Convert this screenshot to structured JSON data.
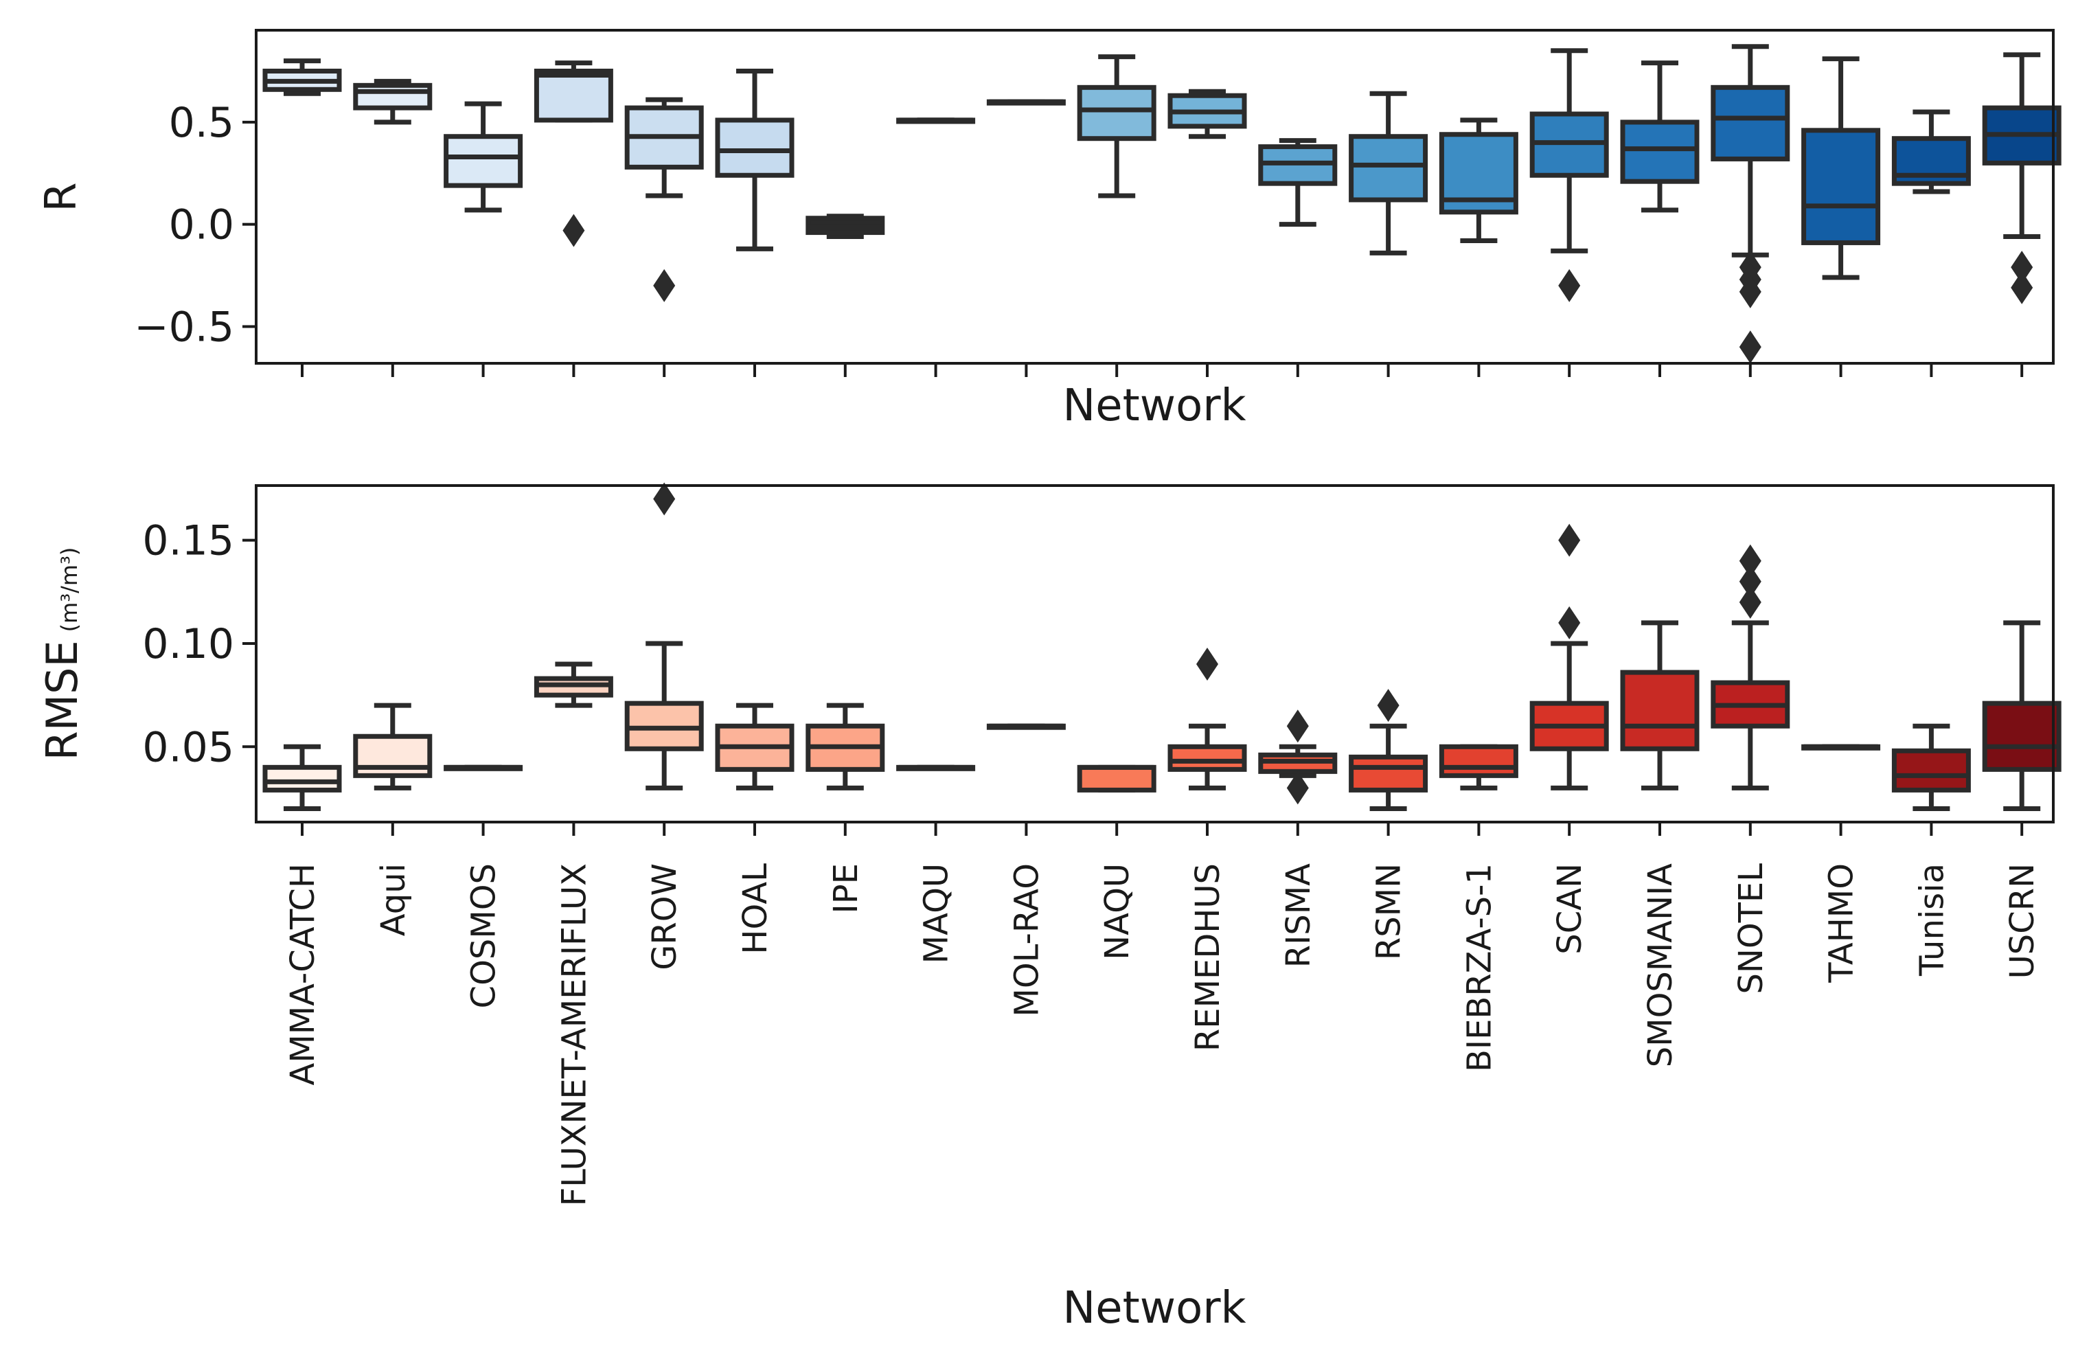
{
  "chart_data": [
    {
      "type": "box",
      "panel": "top",
      "xlabel": "Network",
      "ylabel": "R",
      "ylabel_unit": "",
      "ylim": [
        -0.68,
        0.95
      ],
      "yticks": [
        -0.5,
        0.0,
        0.5
      ],
      "ytick_labels": [
        "−0.5",
        "0.0",
        "0.5"
      ],
      "show_xtick_labels": false,
      "grid": false,
      "categories": [
        "AMMA-CATCH",
        "Aqui",
        "COSMOS",
        "FLUXNET-AMERIFLUX",
        "GROW",
        "HOAL",
        "IPE",
        "MAQU",
        "MOL-RAO",
        "NAQU",
        "REMEDHUS",
        "RISMA",
        "RSMN",
        "BIEBRZA-S-1",
        "SCAN",
        "SMOSMANIA",
        "SNOTEL",
        "TAHMO",
        "Tunisia",
        "USCRN"
      ],
      "boxes": [
        {
          "min": 0.64,
          "q1": 0.66,
          "median": 0.7,
          "q3": 0.75,
          "max": 0.8,
          "outliers": [],
          "color": "#deebf7"
        },
        {
          "min": 0.5,
          "q1": 0.57,
          "median": 0.65,
          "q3": 0.68,
          "max": 0.7,
          "outliers": [],
          "color": "#e3eef8"
        },
        {
          "min": 0.07,
          "q1": 0.19,
          "median": 0.33,
          "q3": 0.43,
          "max": 0.59,
          "outliers": [],
          "color": "#dbe9f6"
        },
        {
          "min": 0.51,
          "q1": 0.51,
          "median": 0.73,
          "q3": 0.75,
          "max": 0.79,
          "outliers": [
            -0.03
          ],
          "color": "#d0e1f2"
        },
        {
          "min": 0.14,
          "q1": 0.28,
          "median": 0.43,
          "q3": 0.57,
          "max": 0.61,
          "outliers": [
            -0.3
          ],
          "color": "#cbdef0"
        },
        {
          "min": -0.12,
          "q1": 0.24,
          "median": 0.36,
          "q3": 0.51,
          "max": 0.75,
          "outliers": [],
          "color": "#c6dbef"
        },
        {
          "min": -0.06,
          "q1": -0.04,
          "median": -0.01,
          "q3": 0.03,
          "max": 0.04,
          "outliers": [],
          "color": "#2b2b2b"
        },
        {
          "min": 0.51,
          "q1": 0.51,
          "median": 0.51,
          "q3": 0.51,
          "max": 0.51,
          "outliers": [],
          "color": "#a9cde3"
        },
        {
          "min": 0.6,
          "q1": 0.6,
          "median": 0.6,
          "q3": 0.6,
          "max": 0.6,
          "outliers": [],
          "color": "#9ac8e0"
        },
        {
          "min": 0.14,
          "q1": 0.42,
          "median": 0.56,
          "q3": 0.67,
          "max": 0.82,
          "outliers": [],
          "color": "#81badb"
        },
        {
          "min": 0.43,
          "q1": 0.48,
          "median": 0.55,
          "q3": 0.63,
          "max": 0.65,
          "outliers": [],
          "color": "#74b3d8"
        },
        {
          "min": 0.0,
          "q1": 0.2,
          "median": 0.3,
          "q3": 0.38,
          "max": 0.41,
          "outliers": [],
          "color": "#5ba3d0"
        },
        {
          "min": -0.14,
          "q1": 0.12,
          "median": 0.29,
          "q3": 0.43,
          "max": 0.64,
          "outliers": [],
          "color": "#4b98ca"
        },
        {
          "min": -0.08,
          "q1": 0.06,
          "median": 0.12,
          "q3": 0.44,
          "max": 0.51,
          "outliers": [],
          "color": "#3d8dc4"
        },
        {
          "min": -0.13,
          "q1": 0.24,
          "median": 0.4,
          "q3": 0.54,
          "max": 0.85,
          "outliers": [
            -0.3
          ],
          "color": "#2f7fbc"
        },
        {
          "min": 0.07,
          "q1": 0.21,
          "median": 0.37,
          "q3": 0.5,
          "max": 0.79,
          "outliers": [],
          "color": "#2474b7"
        },
        {
          "min": -0.15,
          "q1": 0.32,
          "median": 0.52,
          "q3": 0.67,
          "max": 0.87,
          "outliers": [
            -0.21,
            -0.27,
            -0.33,
            -0.6
          ],
          "color": "#1b69af"
        },
        {
          "min": -0.26,
          "q1": -0.09,
          "median": 0.09,
          "q3": 0.46,
          "max": 0.81,
          "outliers": [],
          "color": "#135ea5"
        },
        {
          "min": 0.16,
          "q1": 0.2,
          "median": 0.24,
          "q3": 0.42,
          "max": 0.55,
          "outliers": [],
          "color": "#0d539a"
        },
        {
          "min": -0.06,
          "q1": 0.3,
          "median": 0.44,
          "q3": 0.57,
          "max": 0.83,
          "outliers": [
            -0.21,
            -0.31
          ],
          "color": "#08468b"
        }
      ]
    },
    {
      "type": "box",
      "panel": "bottom",
      "xlabel": "Network",
      "ylabel": "RMSE",
      "ylabel_unit": "(m³/m³)",
      "ylim": [
        0.0135,
        0.1765
      ],
      "yticks": [
        0.05,
        0.1,
        0.15
      ],
      "ytick_labels": [
        "0.05",
        "0.10",
        "0.15"
      ],
      "show_xtick_labels": true,
      "grid": false,
      "categories": [
        "AMMA-CATCH",
        "Aqui",
        "COSMOS",
        "FLUXNET-AMERIFLUX",
        "GROW",
        "HOAL",
        "IPE",
        "MAQU",
        "MOL-RAO",
        "NAQU",
        "REMEDHUS",
        "RISMA",
        "RSMN",
        "BIEBRZA-S-1",
        "SCAN",
        "SMOSMANIA",
        "SNOTEL",
        "TAHMO",
        "Tunisia",
        "USCRN"
      ],
      "boxes": [
        {
          "min": 0.02,
          "q1": 0.029,
          "median": 0.033,
          "q3": 0.04,
          "max": 0.05,
          "outliers": [],
          "color": "#fff0e8"
        },
        {
          "min": 0.03,
          "q1": 0.036,
          "median": 0.04,
          "q3": 0.055,
          "max": 0.07,
          "outliers": [],
          "color": "#fee8dd"
        },
        {
          "min": 0.04,
          "q1": 0.04,
          "median": 0.04,
          "q3": 0.04,
          "max": 0.04,
          "outliers": [],
          "color": "#fde0d2"
        },
        {
          "min": 0.07,
          "q1": 0.075,
          "median": 0.08,
          "q3": 0.083,
          "max": 0.09,
          "outliers": [],
          "color": "#fcd3c1"
        },
        {
          "min": 0.03,
          "q1": 0.049,
          "median": 0.059,
          "q3": 0.071,
          "max": 0.1,
          "outliers": [
            0.17
          ],
          "color": "#fcc3aa"
        },
        {
          "min": 0.03,
          "q1": 0.039,
          "median": 0.05,
          "q3": 0.06,
          "max": 0.07,
          "outliers": [],
          "color": "#fcb399"
        },
        {
          "min": 0.03,
          "q1": 0.039,
          "median": 0.05,
          "q3": 0.06,
          "max": 0.07,
          "outliers": [],
          "color": "#fca588"
        },
        {
          "min": 0.04,
          "q1": 0.04,
          "median": 0.04,
          "q3": 0.04,
          "max": 0.04,
          "outliers": [],
          "color": "#fc9474"
        },
        {
          "min": 0.06,
          "q1": 0.06,
          "median": 0.06,
          "q3": 0.06,
          "max": 0.06,
          "outliers": [],
          "color": "#fb8464"
        },
        {
          "min": 0.029,
          "q1": 0.029,
          "median": 0.04,
          "q3": 0.04,
          "max": 0.04,
          "outliers": [],
          "color": "#f87a58"
        },
        {
          "min": 0.03,
          "q1": 0.039,
          "median": 0.043,
          "q3": 0.05,
          "max": 0.06,
          "outliers": [
            0.09
          ],
          "color": "#f6694b"
        },
        {
          "min": 0.036,
          "q1": 0.038,
          "median": 0.043,
          "q3": 0.046,
          "max": 0.05,
          "outliers": [
            0.06,
            0.03
          ],
          "color": "#f05a40"
        },
        {
          "min": 0.02,
          "q1": 0.029,
          "median": 0.04,
          "q3": 0.045,
          "max": 0.06,
          "outliers": [
            0.07
          ],
          "color": "#e84a34"
        },
        {
          "min": 0.03,
          "q1": 0.036,
          "median": 0.04,
          "q3": 0.05,
          "max": 0.05,
          "outliers": [],
          "color": "#e2412f"
        },
        {
          "min": 0.03,
          "q1": 0.049,
          "median": 0.06,
          "q3": 0.071,
          "max": 0.1,
          "outliers": [
            0.11,
            0.15
          ],
          "color": "#d73327"
        },
        {
          "min": 0.03,
          "q1": 0.049,
          "median": 0.06,
          "q3": 0.086,
          "max": 0.11,
          "outliers": [],
          "color": "#c82a24"
        },
        {
          "min": 0.03,
          "q1": 0.06,
          "median": 0.07,
          "q3": 0.081,
          "max": 0.11,
          "outliers": [
            0.12,
            0.13,
            0.14
          ],
          "color": "#bb2020"
        },
        {
          "min": 0.05,
          "q1": 0.05,
          "median": 0.05,
          "q3": 0.05,
          "max": 0.05,
          "outliers": [],
          "color": "#a81b1c"
        },
        {
          "min": 0.02,
          "q1": 0.029,
          "median": 0.036,
          "q3": 0.048,
          "max": 0.06,
          "outliers": [],
          "color": "#961618"
        },
        {
          "min": 0.02,
          "q1": 0.039,
          "median": 0.05,
          "q3": 0.071,
          "max": 0.11,
          "outliers": [],
          "color": "#7a0e14"
        }
      ]
    }
  ]
}
